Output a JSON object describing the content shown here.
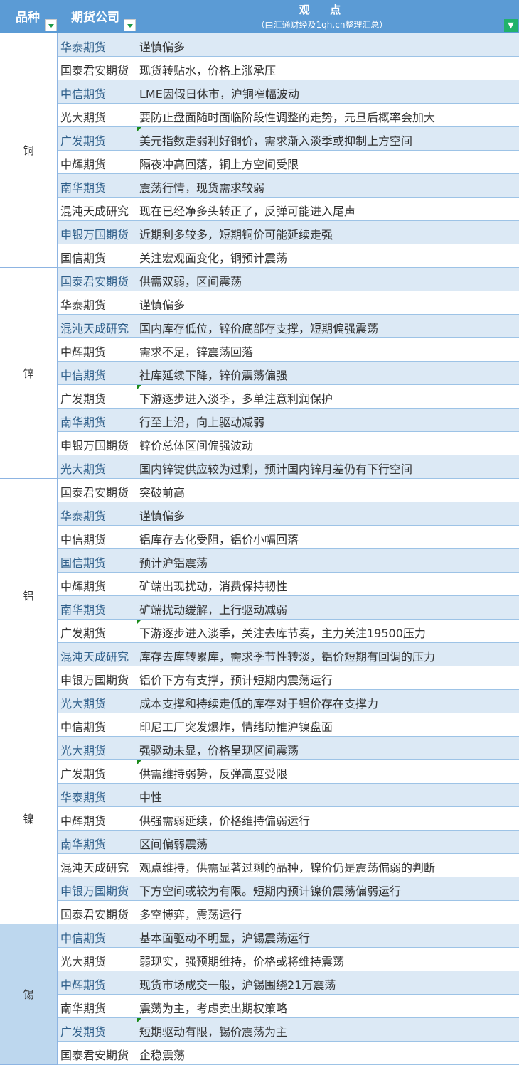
{
  "header": {
    "col1": "品种",
    "col2": "期货公司",
    "col3": "观  点",
    "subtitle": "（由汇通财经及1qh.cn整理汇总）"
  },
  "colors": {
    "header": "#5b9bd5",
    "row_alt": "#dce9f5",
    "tin_category": "#bdd7ee",
    "comment_marker": "#1a8a1a"
  },
  "groups": [
    {
      "name": "铜",
      "rows": [
        [
          "华泰期货",
          "谨慎偏多"
        ],
        [
          "国泰君安期货",
          "现货转贴水，价格上涨承压"
        ],
        [
          "中信期货",
          "LME因假日休市，沪铜窄幅波动"
        ],
        [
          "光大期货",
          "要防止盘面随时面临阶段性调整的走势，元旦后概率会加大"
        ],
        [
          "广发期货",
          "美元指数走弱利好铜价，需求渐入淡季或抑制上方空间"
        ],
        [
          "中辉期货",
          "隔夜冲高回落，铜上方空间受限"
        ],
        [
          "南华期货",
          "震荡行情，现货需求较弱"
        ],
        [
          "混沌天成研究",
          "现在已经净多头转正了，反弹可能进入尾声"
        ],
        [
          "申银万国期货",
          "近期利多较多，短期铜价可能延续走强"
        ],
        [
          "国信期货",
          "关注宏观面变化，铜预计震荡"
        ]
      ]
    },
    {
      "name": "锌",
      "rows": [
        [
          "国泰君安期货",
          "供需双弱，区间震荡"
        ],
        [
          "华泰期货",
          "谨慎偏多"
        ],
        [
          "混沌天成研究",
          "国内库存低位，锌价底部存支撑，短期偏强震荡"
        ],
        [
          "中辉期货",
          "需求不足，锌震荡回落"
        ],
        [
          "中信期货",
          "社库延续下降，锌价震荡偏强"
        ],
        [
          "广发期货",
          "下游逐步进入淡季，多单注意利润保护"
        ],
        [
          "南华期货",
          "行至上沿，向上驱动减弱"
        ],
        [
          "申银万国期货",
          "锌价总体区间偏强波动"
        ],
        [
          "光大期货",
          "国内锌锭供应较为过剩，预计国内锌月差仍有下行空间"
        ]
      ]
    },
    {
      "name": "铝",
      "rows": [
        [
          "国泰君安期货",
          "突破前高"
        ],
        [
          "华泰期货",
          "谨慎偏多"
        ],
        [
          "中信期货",
          "铝库存去化受阻，铝价小幅回落"
        ],
        [
          "国信期货",
          "预计沪铝震荡"
        ],
        [
          "中辉期货",
          "矿端出现扰动，消费保持韧性"
        ],
        [
          "南华期货",
          "矿端扰动缓解，上行驱动减弱"
        ],
        [
          "广发期货",
          "下游逐步进入淡季，关注去库节奏，主力关注19500压力"
        ],
        [
          "混沌天成研究",
          "库存去库转累库，需求季节性转淡，铝价短期有回调的压力"
        ],
        [
          "申银万国期货",
          "铝价下方有支撑，预计短期内震荡运行"
        ],
        [
          "光大期货",
          "成本支撑和持续走低的库存对于铝价存在支撑力"
        ]
      ]
    },
    {
      "name": "镍",
      "rows": [
        [
          "中信期货",
          "印尼工厂突发爆炸，情绪助推沪镍盘面"
        ],
        [
          "光大期货",
          "强驱动未显，价格呈现区间震荡"
        ],
        [
          "广发期货",
          "供需维持弱势，反弹高度受限"
        ],
        [
          "华泰期货",
          "中性"
        ],
        [
          "中辉期货",
          "供强需弱延续，价格维持偏弱运行"
        ],
        [
          "南华期货",
          "区间偏弱震荡"
        ],
        [
          "混沌天成研究",
          "观点维持，供需显著过剩的品种，镍价仍是震荡偏弱的判断"
        ],
        [
          "申银万国期货",
          "下方空间或较为有限。短期内预计镍价震荡偏弱运行"
        ],
        [
          "国泰君安期货",
          "多空博弈，震荡运行"
        ]
      ]
    },
    {
      "name": "锡",
      "rows": [
        [
          "中信期货",
          "基本面驱动不明显，沪锡震荡运行"
        ],
        [
          "光大期货",
          "弱现实，强预期维持，价格或将维持震荡"
        ],
        [
          "中辉期货",
          "现货市场成交一般，沪锡围绕21万震荡"
        ],
        [
          "南华期货",
          "震荡为主，考虑卖出期权策略"
        ],
        [
          "广发期货",
          "短期驱动有限，锡价震荡为主"
        ],
        [
          "国泰君安期货",
          "企稳震荡"
        ]
      ]
    }
  ]
}
